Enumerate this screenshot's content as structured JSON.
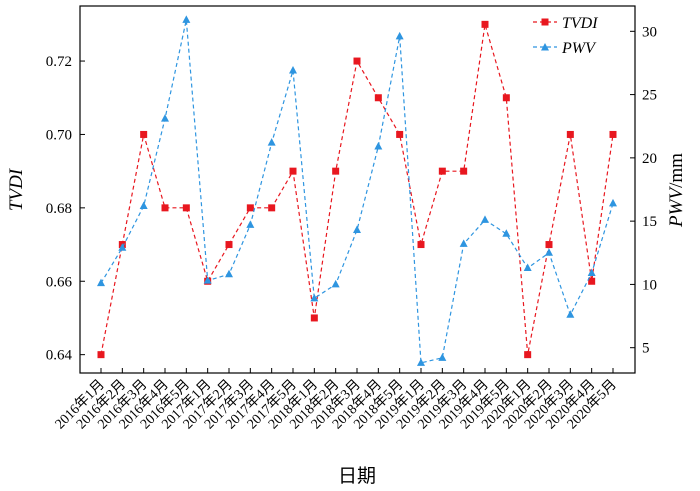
{
  "chart_data": {
    "type": "line",
    "xlabel": "日期",
    "ylabel_left_italic": "TVDI",
    "ylabel_right_italic": "PWV",
    "ylabel_right_unit": "/mm",
    "categories": [
      "2016年1月",
      "2016年2月",
      "2016年3月",
      "2016年4月",
      "2016年5月",
      "2017年1月",
      "2017年2月",
      "2017年3月",
      "2017年4月",
      "2017年5月",
      "2018年1月",
      "2018年2月",
      "2018年3月",
      "2018年4月",
      "2018年5月",
      "2019年1月",
      "2019年2月",
      "2019年3月",
      "2019年4月",
      "2019年5月",
      "2020年1月",
      "2020年2月",
      "2020年3月",
      "2020年4月",
      "2020年5月"
    ],
    "y_left": {
      "lim": [
        0.635,
        0.735
      ],
      "ticks": [
        "0.64",
        "0.66",
        "0.68",
        "0.70",
        "0.72"
      ]
    },
    "y_right": {
      "lim": [
        3.0,
        32.0
      ],
      "ticks": [
        "5",
        "10",
        "15",
        "20",
        "25",
        "30"
      ]
    },
    "legend_position": "top-right",
    "series": [
      {
        "name": "TVDI",
        "axis": "left",
        "color": "#e8171f",
        "marker": "square",
        "line_style": "dashed",
        "values": [
          0.64,
          0.67,
          0.7,
          0.68,
          0.68,
          0.66,
          0.67,
          0.68,
          0.68,
          0.69,
          0.65,
          0.69,
          0.72,
          0.71,
          0.7,
          0.67,
          0.69,
          0.69,
          0.73,
          0.71,
          0.64,
          0.67,
          0.7,
          0.66,
          0.7
        ]
      },
      {
        "name": "PWV",
        "axis": "right",
        "color": "#2e95e0",
        "marker": "triangle",
        "line_style": "dashed",
        "values": [
          10.1,
          12.9,
          16.2,
          23.1,
          30.9,
          10.3,
          10.8,
          14.7,
          21.2,
          26.9,
          8.9,
          10.0,
          14.3,
          20.9,
          29.6,
          3.8,
          4.2,
          13.2,
          15.1,
          14.0,
          11.3,
          12.5,
          7.6,
          10.9,
          16.4
        ]
      }
    ]
  }
}
